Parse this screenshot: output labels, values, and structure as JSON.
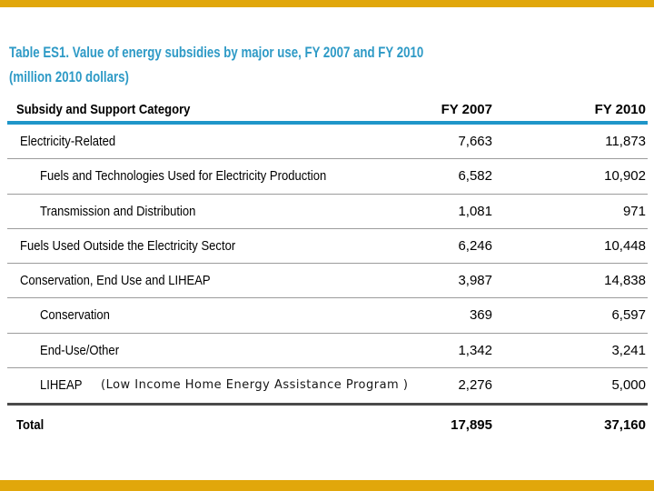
{
  "colors": {
    "accent_gold": "#e1a70b",
    "title_blue": "#2e9ac6",
    "header_rule_blue": "#1f96c9",
    "thin_separator_gray": "#9c9c9c",
    "total_rule_gray": "#4a4a4a"
  },
  "title": {
    "line1": "Table ES1. Value of energy subsidies by major use, FY 2007 and FY 2010",
    "line2": "(million 2010 dollars)"
  },
  "table": {
    "header": {
      "category": "Subsidy and Support Category",
      "col2007": "FY 2007",
      "col2010": "FY 2010"
    },
    "rows": [
      {
        "label": "Electricity-Related",
        "indent": 1,
        "fy2007": "7,663",
        "fy2010": "11,873"
      },
      {
        "label": "Fuels and Technologies Used for Electricity Production",
        "indent": 2,
        "fy2007": "6,582",
        "fy2010": "10,902"
      },
      {
        "label": "Transmission and Distribution",
        "indent": 2,
        "fy2007": "1,081",
        "fy2010": "971"
      },
      {
        "label": "Fuels Used Outside the Electricity Sector",
        "indent": 1,
        "fy2007": "6,246",
        "fy2010": "10,448"
      },
      {
        "label": "Conservation, End Use and LIHEAP",
        "indent": 1,
        "fy2007": "3,987",
        "fy2010": "14,838"
      },
      {
        "label": "Conservation",
        "indent": 2,
        "fy2007": "369",
        "fy2010": "6,597"
      },
      {
        "label": "End-Use/Other",
        "indent": 2,
        "fy2007": "1,342",
        "fy2010": "3,241"
      },
      {
        "label": "LIHEAP",
        "indent": 2,
        "annotation": "(Low Income Home Energy Assistance Program )",
        "fy2007": "2,276",
        "fy2010": "5,000"
      }
    ],
    "total": {
      "label": "Total",
      "fy2007": "17,895",
      "fy2010": "37,160"
    }
  }
}
